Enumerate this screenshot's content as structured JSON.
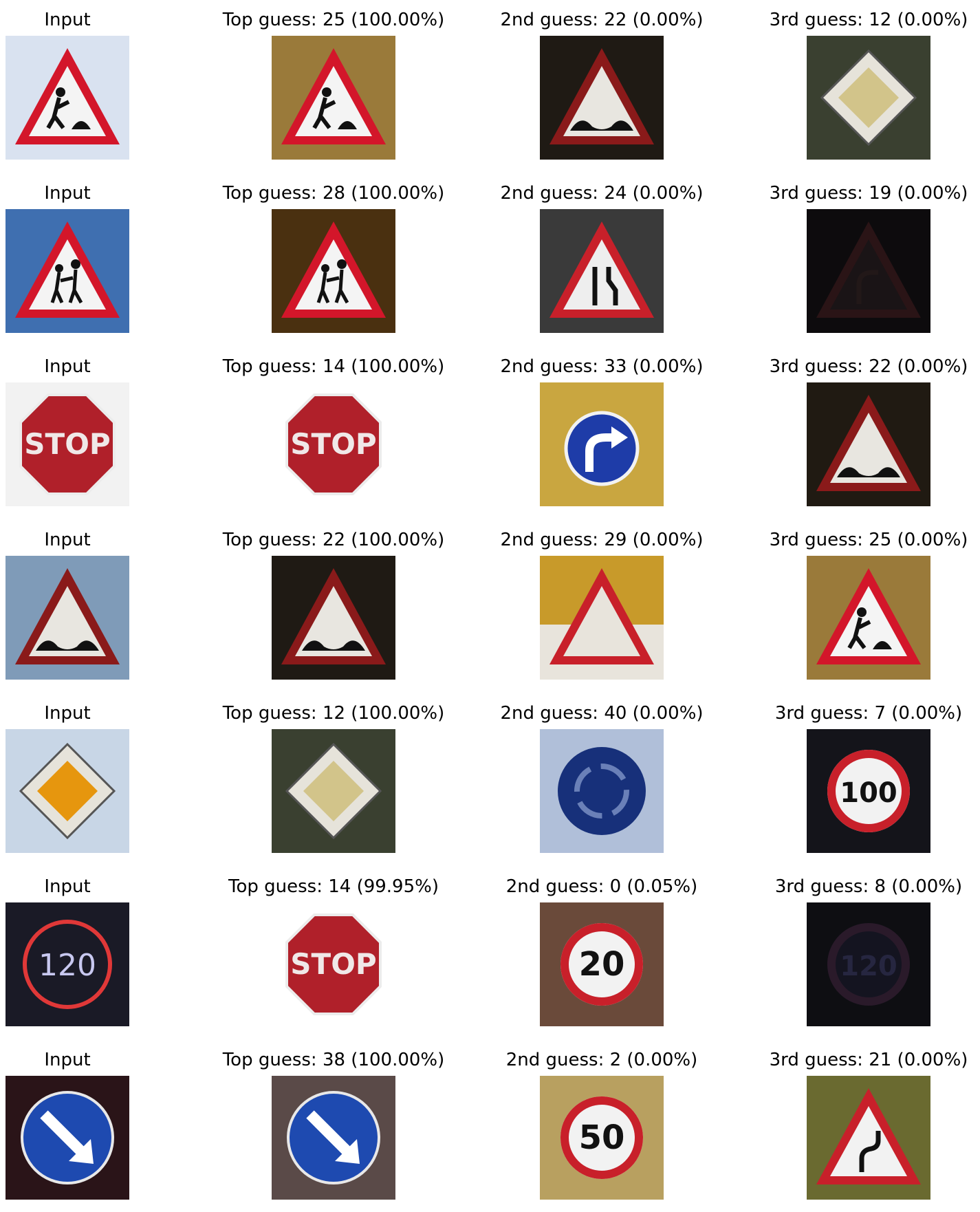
{
  "rows": [
    {
      "cells": [
        {
          "title": "Input",
          "sign": "roadwork",
          "bg": "#d9e2f0"
        },
        {
          "title": "Top guess: 25 (100.00%)",
          "sign": "roadwork",
          "bg": "#9a7a3a"
        },
        {
          "title": "2nd guess: 22 (0.00%)",
          "sign": "bumpy",
          "bg": "#1f1a14"
        },
        {
          "title": "3rd guess: 12 (0.00%)",
          "sign": "priority",
          "bg": "#3a4030"
        }
      ]
    },
    {
      "cells": [
        {
          "title": "Input",
          "sign": "children",
          "bg": "#3f6fb0"
        },
        {
          "title": "Top guess: 28 (100.00%)",
          "sign": "children",
          "bg": "#4a3010"
        },
        {
          "title": "2nd guess: 24 (0.00%)",
          "sign": "narrows",
          "bg": "#3a3a3a"
        },
        {
          "title": "3rd guess: 19 (0.00%)",
          "sign": "curve",
          "bg": "#0d0b0d"
        }
      ]
    },
    {
      "cells": [
        {
          "title": "Input",
          "sign": "stop",
          "sign_text": "STOP",
          "bg": "#f2f2f2"
        },
        {
          "title": "Top guess: 14 (100.00%)",
          "sign": "stop",
          "sign_text": "STOP",
          "bg": "#ffffff"
        },
        {
          "title": "2nd guess: 33 (0.00%)",
          "sign": "turn-right",
          "bg": "#c9a640"
        },
        {
          "title": "3rd guess: 22 (0.00%)",
          "sign": "bumpy",
          "bg": "#201a12"
        }
      ]
    },
    {
      "cells": [
        {
          "title": "Input",
          "sign": "bumpy",
          "bg": "#7f9bb8"
        },
        {
          "title": "Top guess: 22 (100.00%)",
          "sign": "bumpy",
          "bg": "#1f1a14"
        },
        {
          "title": "2nd guess: 29 (0.00%)",
          "sign": "warning",
          "bg": "#c89a2a"
        },
        {
          "title": "3rd guess: 25 (0.00%)",
          "sign": "roadwork",
          "bg": "#9a7a3a"
        }
      ]
    },
    {
      "cells": [
        {
          "title": "Input",
          "sign": "priority",
          "bg": "#c8d6e6"
        },
        {
          "title": "Top guess: 12 (100.00%)",
          "sign": "priority",
          "bg": "#3a4030"
        },
        {
          "title": "2nd guess: 40 (0.00%)",
          "sign": "roundabout",
          "bg": "#b0bfd9"
        },
        {
          "title": "3rd guess: 7 (0.00%)",
          "sign": "speed",
          "sign_text": "100",
          "bg": "#14141a"
        }
      ]
    },
    {
      "cells": [
        {
          "title": "Input",
          "sign": "speed-led",
          "sign_text": "120",
          "bg": "#1a1a26"
        },
        {
          "title": "Top guess: 14 (99.95%)",
          "sign": "stop",
          "sign_text": "STOP",
          "bg": "#ffffff"
        },
        {
          "title": "2nd guess: 0 (0.05%)",
          "sign": "speed",
          "sign_text": "20",
          "bg": "#6a4a3a"
        },
        {
          "title": "3rd guess: 8 (0.00%)",
          "sign": "speed-dark",
          "sign_text": "120",
          "bg": "#0e0e12"
        }
      ]
    },
    {
      "cells": [
        {
          "title": "Input",
          "sign": "keep-right",
          "bg": "#2a1418"
        },
        {
          "title": "Top guess: 38 (100.00%)",
          "sign": "keep-right",
          "bg": "#5a4a48"
        },
        {
          "title": "2nd guess: 2 (0.00%)",
          "sign": "speed",
          "sign_text": "50",
          "bg": "#b8a060"
        },
        {
          "title": "3rd guess: 21 (0.00%)",
          "sign": "double-curve",
          "bg": "#6a6a30"
        }
      ]
    }
  ]
}
